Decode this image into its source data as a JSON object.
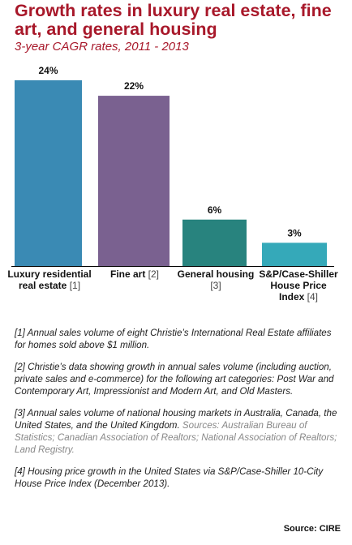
{
  "chart_data": {
    "type": "bar",
    "title": "Growth rates in luxury real estate, fine art, and general housing",
    "subtitle": "3-year CAGR rates, 2011 - 2013",
    "categories": [
      "Luxury residential real estate",
      "Fine art",
      "General housing",
      "S&P/Case-Shiller House Price Index"
    ],
    "refs": [
      "[1]",
      "[2]",
      "[3]",
      "[4]"
    ],
    "values": [
      24,
      22,
      6,
      3
    ],
    "value_labels": [
      "24%",
      "22%",
      "6%",
      "3%"
    ],
    "colors": [
      "#3a8ab4",
      "#7a6190",
      "#28837e",
      "#35a9b9"
    ],
    "ylim": [
      0,
      25
    ],
    "grid": false,
    "legend": "none"
  },
  "labels": [
    {
      "name": "Luxury residential real estate",
      "ref": "[1]"
    },
    {
      "name": "Fine art",
      "ref": "[2]"
    },
    {
      "name": "General housing",
      "ref": "[3]"
    },
    {
      "name": "S&P/Case-Shiller House Price Index",
      "ref": "[4]"
    }
  ],
  "notes": {
    "n1": "[1] Annual sales volume of eight Christie’s International Real Estate affiliates for homes sold above $1 million.",
    "n2": "[2] Christie’s data showing growth in annual sales volume (including auction, private sales and e-commerce) for the following art categories: Post War and Contemporary Art, Impressionist and Modern Art, and Old Masters.",
    "n3": "[3] Annual sales volume of national housing markets in Australia, Canada, the United States, and the United Kingdom.",
    "n3_sources": "Sources: Australian Bureau of Statistics; Canadian Association of Realtors; National Association of Realtors; Land Registry.",
    "n4": "[4] Housing price growth in the United States via S&P/Case-Shiller 10-City House Price Index (December 2013)."
  },
  "source": "Source: CIRE"
}
